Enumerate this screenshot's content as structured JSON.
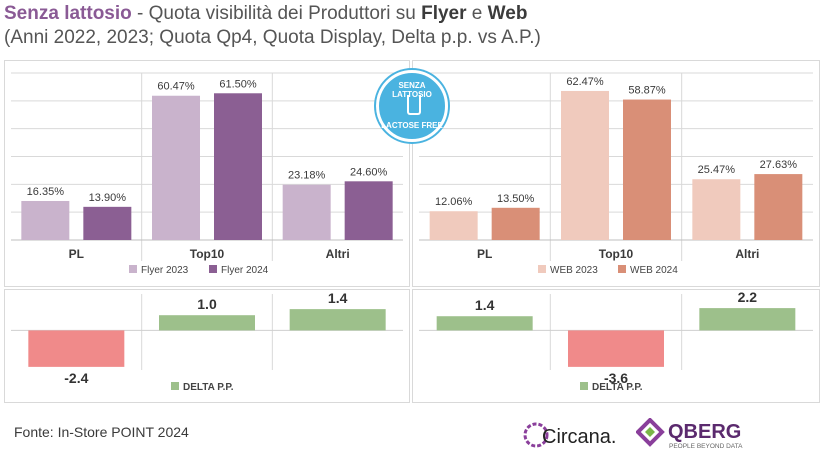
{
  "title": {
    "category": "Senza lattosio",
    "separator": " - ",
    "text1": "Quota visibilità dei Produttori su ",
    "flyer": "Flyer",
    "text2": " e ",
    "web": "Web",
    "subtitle": "(Anni 2022, 2023; Quota Qp4, Quota Display, Delta p.p. vs A.P.)"
  },
  "badge": {
    "line1": "SENZA LATTOSIO",
    "line2": "LACTOSE FREE"
  },
  "colors": {
    "flyer2023": "#c9b3cc",
    "flyer2024": "#8b5f93",
    "web2023": "#f0cabd",
    "web2024": "#d98f77",
    "deltaPos": "#9dc08b",
    "deltaNeg": "#f08a8a",
    "grid": "#d9d9d9"
  },
  "chart_data": [
    {
      "type": "bar",
      "id": "flyer",
      "categories": [
        "PL",
        "Top10",
        "Altri"
      ],
      "series": [
        {
          "name": "Flyer 2023",
          "values": [
            16.35,
            60.47,
            23.18
          ],
          "labels": [
            "16.35%",
            "60.47%",
            "23.18%"
          ]
        },
        {
          "name": "Flyer 2024",
          "values": [
            13.9,
            61.5,
            24.6
          ],
          "labels": [
            "13.90%",
            "61.50%",
            "24.60%"
          ]
        }
      ],
      "ylim": [
        0,
        70
      ]
    },
    {
      "type": "bar",
      "id": "web",
      "categories": [
        "PL",
        "Top10",
        "Altri"
      ],
      "series": [
        {
          "name": "WEB 2023",
          "values": [
            12.06,
            62.47,
            25.47
          ],
          "labels": [
            "12.06%",
            "62.47%",
            "25.47%"
          ]
        },
        {
          "name": "WEB 2024",
          "values": [
            13.5,
            58.87,
            27.63
          ],
          "labels": [
            "13.50%",
            "58.87%",
            "27.63%"
          ]
        }
      ],
      "ylim": [
        0,
        70
      ]
    },
    {
      "type": "bar",
      "id": "delta_flyer",
      "categories": [
        "PL",
        "Top10",
        "Altri"
      ],
      "series": [
        {
          "name": "DELTA P.P.",
          "values": [
            -2.4,
            1.0,
            1.4
          ],
          "labels": [
            "-2.4",
            "1.0",
            "1.4"
          ]
        }
      ],
      "ylim": [
        -3,
        2
      ]
    },
    {
      "type": "bar",
      "id": "delta_web",
      "categories": [
        "PL",
        "Top10",
        "Altri"
      ],
      "series": [
        {
          "name": "DELTA P.P.",
          "values": [
            1.4,
            -3.6,
            2.2
          ],
          "labels": [
            "1.4",
            "-3.6",
            "2.2"
          ]
        }
      ],
      "ylim": [
        -4.5,
        3
      ]
    }
  ],
  "source": "Fonte: In-Store POINT 2024",
  "logos": {
    "circana": "Circana.",
    "qberg": "QBERG",
    "qberg_tag": "PEOPLE BEYOND DATA"
  }
}
